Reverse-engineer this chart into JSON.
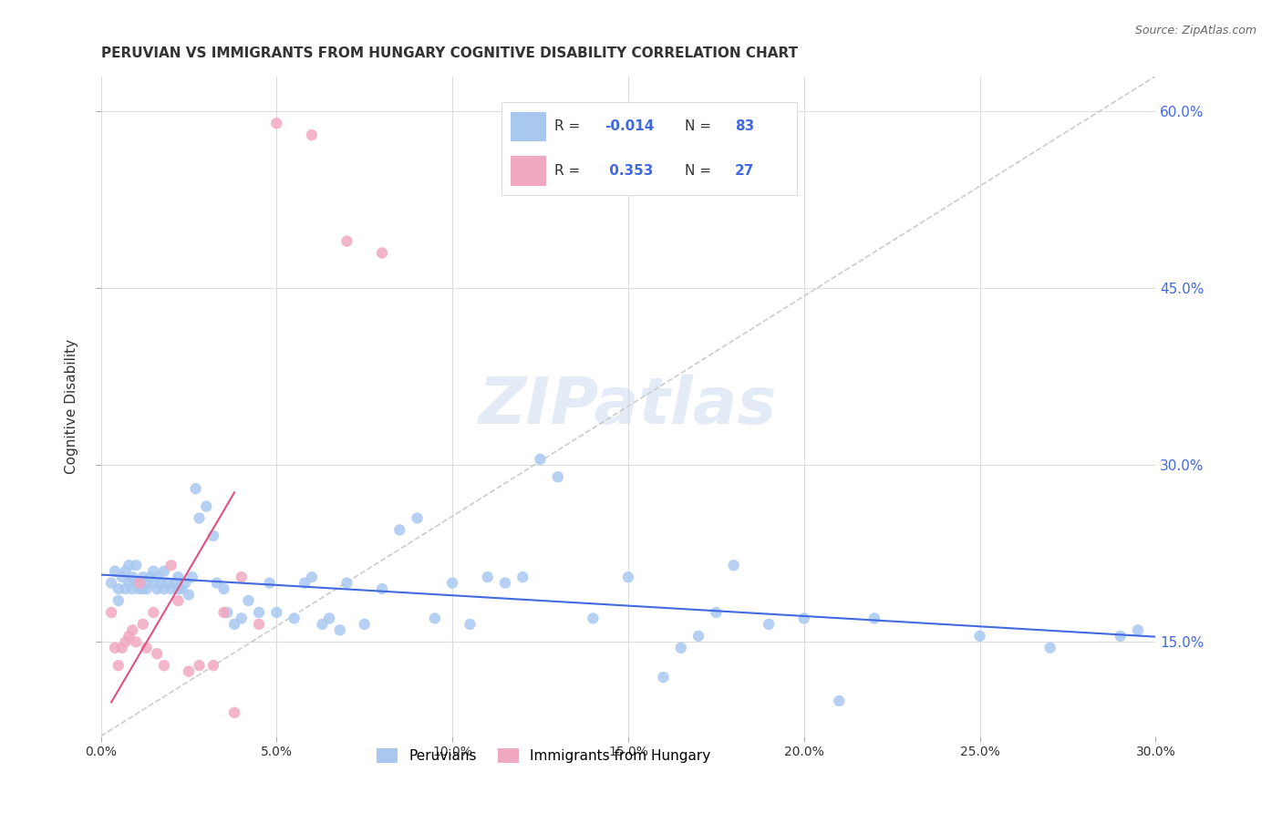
{
  "title": "PERUVIAN VS IMMIGRANTS FROM HUNGARY COGNITIVE DISABILITY CORRELATION CHART",
  "source": "Source: ZipAtlas.com",
  "xlim": [
    0.0,
    0.3
  ],
  "ylim": [
    0.07,
    0.63
  ],
  "ylabel": "Cognitive Disability",
  "legend_labels": [
    "Peruvians",
    "Immigrants from Hungary"
  ],
  "R_peruvian": -0.014,
  "N_peruvian": 83,
  "R_hungary": 0.353,
  "N_hungary": 27,
  "peruvian_color": "#a8c8f0",
  "hungary_color": "#f0a8c0",
  "peruvian_line_color": "#4169e1",
  "hungary_line_color": "#e05080",
  "background_color": "#ffffff",
  "watermark": "ZIPatlas",
  "peruvian_scatter_x": [
    0.003,
    0.004,
    0.005,
    0.005,
    0.006,
    0.007,
    0.007,
    0.008,
    0.008,
    0.009,
    0.009,
    0.01,
    0.01,
    0.011,
    0.011,
    0.012,
    0.012,
    0.013,
    0.013,
    0.014,
    0.015,
    0.015,
    0.016,
    0.016,
    0.017,
    0.018,
    0.018,
    0.019,
    0.02,
    0.021,
    0.022,
    0.022,
    0.023,
    0.024,
    0.025,
    0.026,
    0.027,
    0.028,
    0.03,
    0.032,
    0.033,
    0.035,
    0.036,
    0.038,
    0.04,
    0.042,
    0.045,
    0.048,
    0.05,
    0.055,
    0.058,
    0.06,
    0.063,
    0.065,
    0.068,
    0.07,
    0.075,
    0.08,
    0.085,
    0.09,
    0.095,
    0.1,
    0.105,
    0.11,
    0.115,
    0.12,
    0.125,
    0.13,
    0.14,
    0.15,
    0.16,
    0.165,
    0.17,
    0.175,
    0.18,
    0.19,
    0.2,
    0.21,
    0.22,
    0.25,
    0.27,
    0.29,
    0.295
  ],
  "peruvian_scatter_y": [
    0.2,
    0.21,
    0.195,
    0.185,
    0.205,
    0.195,
    0.21,
    0.2,
    0.215,
    0.195,
    0.205,
    0.2,
    0.215,
    0.195,
    0.2,
    0.195,
    0.205,
    0.195,
    0.2,
    0.205,
    0.21,
    0.2,
    0.195,
    0.205,
    0.2,
    0.195,
    0.21,
    0.2,
    0.195,
    0.2,
    0.195,
    0.205,
    0.195,
    0.2,
    0.19,
    0.205,
    0.28,
    0.255,
    0.265,
    0.24,
    0.2,
    0.195,
    0.175,
    0.165,
    0.17,
    0.185,
    0.175,
    0.2,
    0.175,
    0.17,
    0.2,
    0.205,
    0.165,
    0.17,
    0.16,
    0.2,
    0.165,
    0.195,
    0.245,
    0.255,
    0.17,
    0.2,
    0.165,
    0.205,
    0.2,
    0.205,
    0.305,
    0.29,
    0.17,
    0.205,
    0.12,
    0.145,
    0.155,
    0.175,
    0.215,
    0.165,
    0.17,
    0.1,
    0.17,
    0.155,
    0.145,
    0.155,
    0.16
  ],
  "hungary_scatter_x": [
    0.003,
    0.004,
    0.005,
    0.006,
    0.007,
    0.008,
    0.009,
    0.01,
    0.011,
    0.012,
    0.013,
    0.015,
    0.016,
    0.018,
    0.02,
    0.022,
    0.025,
    0.028,
    0.032,
    0.035,
    0.038,
    0.04,
    0.045,
    0.05,
    0.06,
    0.07,
    0.08
  ],
  "hungary_scatter_y": [
    0.175,
    0.145,
    0.13,
    0.145,
    0.15,
    0.155,
    0.16,
    0.15,
    0.2,
    0.165,
    0.145,
    0.175,
    0.14,
    0.13,
    0.215,
    0.185,
    0.125,
    0.13,
    0.13,
    0.175,
    0.09,
    0.205,
    0.165,
    0.59,
    0.58,
    0.49,
    0.48
  ]
}
